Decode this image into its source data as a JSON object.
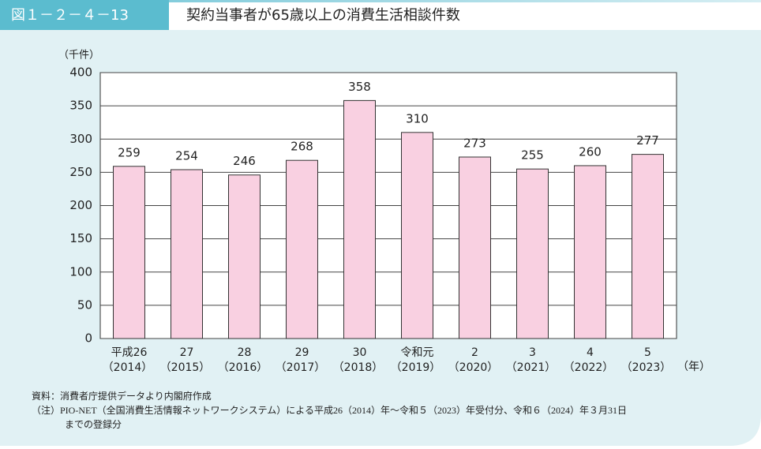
{
  "chart_data": {
    "type": "bar",
    "figure_label": "図１－２－４－13",
    "title": "契約当事者が65歳以上の消費生活相談件数",
    "y_unit_label": "（千件）",
    "x_unit_label": "（年）",
    "categories": [
      "平成26",
      "27",
      "28",
      "29",
      "30",
      "令和元",
      "2",
      "3",
      "4",
      "5"
    ],
    "category_years": [
      "（2014）",
      "（2015）",
      "（2016）",
      "（2017）",
      "（2018）",
      "（2019）",
      "（2020）",
      "（2021）",
      "（2022）",
      "（2023）"
    ],
    "values": [
      259,
      254,
      246,
      268,
      358,
      310,
      273,
      255,
      260,
      277
    ],
    "color": "#f9d0e1",
    "ylim": [
      0,
      400
    ],
    "yticks": [
      0,
      50,
      100,
      150,
      200,
      250,
      300,
      350,
      400
    ],
    "grid": true,
    "notes": [
      "資料：消費者庁提供データより内閣府作成",
      "（注）PIO-NET（全国消費生活情報ネットワークシステム）による平成26（2014）年～令和５（2023）年受付分、令和６（2024）年３月31日",
      "までの登録分"
    ]
  }
}
